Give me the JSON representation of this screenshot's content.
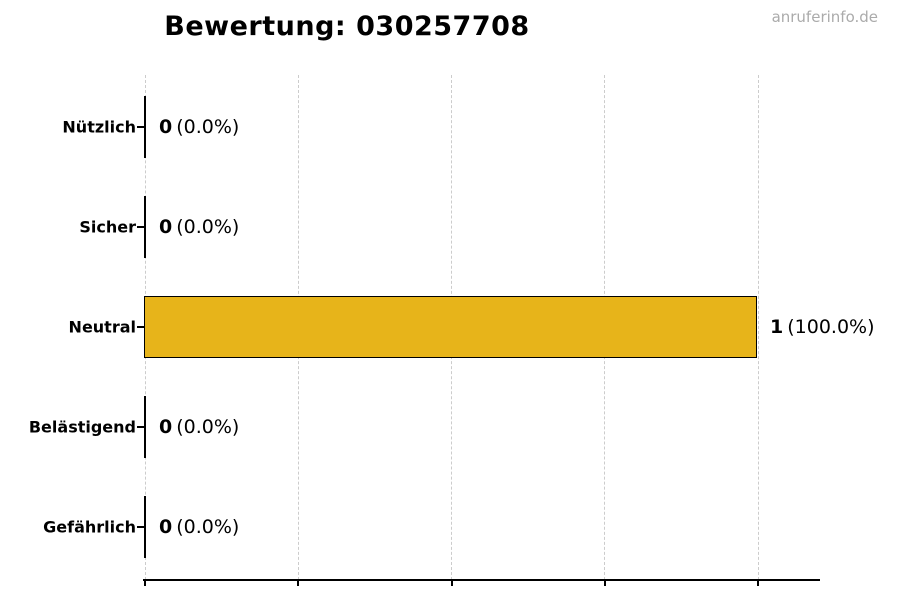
{
  "watermark": "anruferinfo.de",
  "chart_data": {
    "type": "bar",
    "orientation": "horizontal",
    "title": "Bewertung: 030257708",
    "categories": [
      "Nützlich",
      "Sicher",
      "Neutral",
      "Belästigend",
      "Gefährlich"
    ],
    "values": [
      0,
      0,
      1,
      0,
      0
    ],
    "value_labels": [
      {
        "num": "0",
        "pct": "(0.0%)"
      },
      {
        "num": "0",
        "pct": "(0.0%)"
      },
      {
        "num": "1",
        "pct": "(100.0%)"
      },
      {
        "num": "0",
        "pct": "(0.0%)"
      },
      {
        "num": "0",
        "pct": "(0.0%)"
      }
    ],
    "percentages": [
      0.0,
      0.0,
      100.0,
      0.0,
      0.0
    ],
    "total": 1,
    "xlim": [
      0,
      1.093
    ],
    "grid_values": [
      0,
      0.25,
      0.5,
      0.75,
      1
    ],
    "grid": true,
    "legend": false,
    "xlabel": "",
    "ylabel": "",
    "bar_color": "#e7b41a",
    "bar_edge_color": "#000000",
    "grid_color": "#cccccc",
    "axis_color": "#000000",
    "watermark_color": "#ababab"
  }
}
